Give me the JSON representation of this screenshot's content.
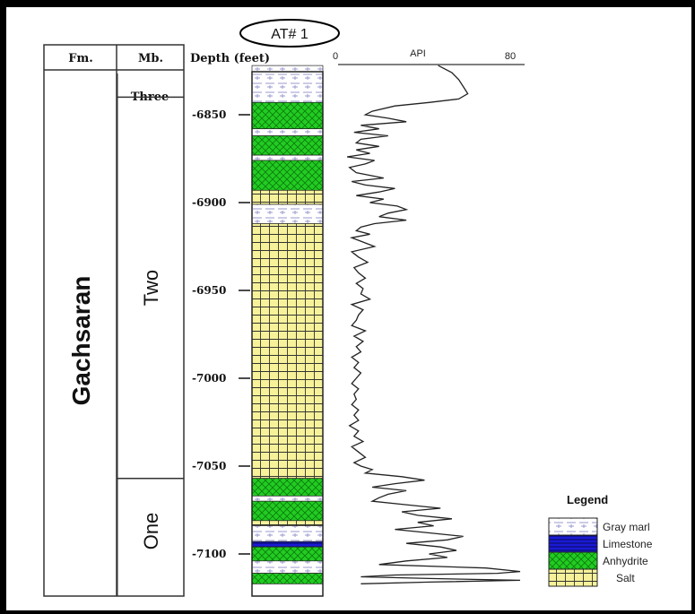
{
  "well": {
    "name": "AT# 1"
  },
  "columns": {
    "formation": "Fm.",
    "member": "Mb.",
    "depth": "Depth (feet)"
  },
  "formation": {
    "name": "Gachsaran"
  },
  "members": [
    {
      "name": "Three",
      "top": 6822,
      "base": 6840
    },
    {
      "name": "Two",
      "top": 6840,
      "base": 7057
    },
    {
      "name": "One",
      "top": 7057,
      "base": 7117
    }
  ],
  "depth_ticks": [
    {
      "value": 6850,
      "label": "-6850"
    },
    {
      "value": 6900,
      "label": "-6900"
    },
    {
      "value": 6950,
      "label": "-6950"
    },
    {
      "value": 7000,
      "label": "-7000"
    },
    {
      "value": 7050,
      "label": "-7050"
    },
    {
      "value": 7100,
      "label": "-7100"
    }
  ],
  "lithology": [
    {
      "top": 6822,
      "base": 6843,
      "type": "gray_marl"
    },
    {
      "top": 6843,
      "base": 6858,
      "type": "anhydrite"
    },
    {
      "top": 6858,
      "base": 6862,
      "type": "gray_marl"
    },
    {
      "top": 6862,
      "base": 6873,
      "type": "anhydrite"
    },
    {
      "top": 6873,
      "base": 6876,
      "type": "gray_marl"
    },
    {
      "top": 6876,
      "base": 6893,
      "type": "anhydrite"
    },
    {
      "top": 6893,
      "base": 6901,
      "type": "salt"
    },
    {
      "top": 6901,
      "base": 6912,
      "type": "gray_marl"
    },
    {
      "top": 6912,
      "base": 7057,
      "type": "salt"
    },
    {
      "top": 7057,
      "base": 7067,
      "type": "anhydrite"
    },
    {
      "top": 7067,
      "base": 7070,
      "type": "gray_marl"
    },
    {
      "top": 7070,
      "base": 7081,
      "type": "anhydrite"
    },
    {
      "top": 7081,
      "base": 7084,
      "type": "salt"
    },
    {
      "top": 7084,
      "base": 7093,
      "type": "gray_marl"
    },
    {
      "top": 7093,
      "base": 7096,
      "type": "limestone"
    },
    {
      "top": 7096,
      "base": 7104,
      "type": "anhydrite"
    },
    {
      "top": 7104,
      "base": 7111,
      "type": "gray_marl"
    },
    {
      "top": 7111,
      "base": 7117,
      "type": "anhydrite"
    }
  ],
  "gamma_log": {
    "label": "API",
    "min": 0,
    "max": 80,
    "min_label": "0",
    "max_label": "80",
    "points": [
      [
        6822,
        44
      ],
      [
        6826,
        50
      ],
      [
        6830,
        53
      ],
      [
        6834,
        55
      ],
      [
        6838,
        57
      ],
      [
        6841,
        53
      ],
      [
        6843,
        40
      ],
      [
        6845,
        25
      ],
      [
        6848,
        15
      ],
      [
        6850,
        12
      ],
      [
        6852,
        22
      ],
      [
        6854,
        30
      ],
      [
        6856,
        10
      ],
      [
        6858,
        18
      ],
      [
        6860,
        7
      ],
      [
        6862,
        22
      ],
      [
        6864,
        10
      ],
      [
        6866,
        8
      ],
      [
        6868,
        18
      ],
      [
        6870,
        8
      ],
      [
        6872,
        14
      ],
      [
        6874,
        4
      ],
      [
        6876,
        16
      ],
      [
        6878,
        12
      ],
      [
        6880,
        5
      ],
      [
        6883,
        8
      ],
      [
        6886,
        20
      ],
      [
        6888,
        6
      ],
      [
        6890,
        12
      ],
      [
        6892,
        25
      ],
      [
        6894,
        18
      ],
      [
        6896,
        8
      ],
      [
        6898,
        20
      ],
      [
        6900,
        14
      ],
      [
        6902,
        26
      ],
      [
        6904,
        30
      ],
      [
        6906,
        22
      ],
      [
        6908,
        18
      ],
      [
        6910,
        30
      ],
      [
        6912,
        16
      ],
      [
        6914,
        10
      ],
      [
        6916,
        8
      ],
      [
        6918,
        14
      ],
      [
        6920,
        6
      ],
      [
        6922,
        10
      ],
      [
        6925,
        16
      ],
      [
        6928,
        6
      ],
      [
        6931,
        9
      ],
      [
        6934,
        13
      ],
      [
        6937,
        7
      ],
      [
        6940,
        9
      ],
      [
        6943,
        12
      ],
      [
        6946,
        8
      ],
      [
        6949,
        11
      ],
      [
        6952,
        10
      ],
      [
        6955,
        14
      ],
      [
        6958,
        6
      ],
      [
        6961,
        11
      ],
      [
        6964,
        9
      ],
      [
        6967,
        8
      ],
      [
        6970,
        6
      ],
      [
        6973,
        12
      ],
      [
        6976,
        7
      ],
      [
        6979,
        11
      ],
      [
        6982,
        8
      ],
      [
        6985,
        10
      ],
      [
        6988,
        6
      ],
      [
        6991,
        9
      ],
      [
        6994,
        7
      ],
      [
        6997,
        10
      ],
      [
        7000,
        8
      ],
      [
        7003,
        6
      ],
      [
        7006,
        9
      ],
      [
        7009,
        7
      ],
      [
        7012,
        8
      ],
      [
        7015,
        6
      ],
      [
        7018,
        9
      ],
      [
        7021,
        7
      ],
      [
        7024,
        9
      ],
      [
        7027,
        5
      ],
      [
        7030,
        9
      ],
      [
        7033,
        7
      ],
      [
        7036,
        11
      ],
      [
        7039,
        6
      ],
      [
        7042,
        9
      ],
      [
        7045,
        12
      ],
      [
        7048,
        7
      ],
      [
        7050,
        10
      ],
      [
        7052,
        15
      ],
      [
        7054,
        12
      ],
      [
        7056,
        28
      ],
      [
        7058,
        38
      ],
      [
        7060,
        25
      ],
      [
        7062,
        15
      ],
      [
        7064,
        30
      ],
      [
        7066,
        22
      ],
      [
        7068,
        18
      ],
      [
        7070,
        15
      ],
      [
        7072,
        30
      ],
      [
        7074,
        45
      ],
      [
        7076,
        28
      ],
      [
        7078,
        35
      ],
      [
        7080,
        50
      ],
      [
        7082,
        35
      ],
      [
        7084,
        42
      ],
      [
        7086,
        25
      ],
      [
        7088,
        40
      ],
      [
        7090,
        55
      ],
      [
        7092,
        48
      ],
      [
        7094,
        30
      ],
      [
        7096,
        45
      ],
      [
        7098,
        52
      ],
      [
        7100,
        40
      ],
      [
        7102,
        48
      ],
      [
        7104,
        30
      ],
      [
        7106,
        18
      ],
      [
        7108,
        65
      ],
      [
        7110,
        80
      ],
      [
        7111,
        70
      ],
      [
        7112,
        25
      ],
      [
        7113,
        10
      ],
      [
        7114,
        40
      ],
      [
        7115,
        80
      ],
      [
        7116,
        40
      ],
      [
        7117,
        10
      ]
    ]
  },
  "legend": {
    "title": "Legend",
    "items": [
      {
        "type": "gray_marl",
        "label": "Gray marl"
      },
      {
        "type": "limestone",
        "label": "Limestone"
      },
      {
        "type": "anhydrite",
        "label": "Anhydrite"
      },
      {
        "type": "salt",
        "label": "Salt"
      }
    ]
  },
  "colors": {
    "anhydrite": "#22cc22",
    "anhydrite_hatch": "#0d7a0d",
    "salt": "#f7f29a",
    "salt_grid": "#333333",
    "limestone": "#1a1ad6",
    "limestone_line": "#0a0a55",
    "gray_marl": "#ffffff",
    "gray_marl_hatch": "#9a9acf",
    "log_line": "#222222"
  }
}
